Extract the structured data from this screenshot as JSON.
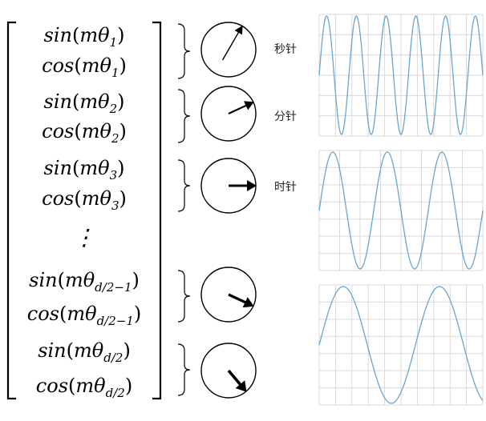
{
  "vector": {
    "entries": [
      {
        "fn": "sin",
        "sub": "1"
      },
      {
        "fn": "cos",
        "sub": "1"
      },
      {
        "fn": "sin",
        "sub": "2"
      },
      {
        "fn": "cos",
        "sub": "2"
      },
      {
        "fn": "sin",
        "sub": "3"
      },
      {
        "fn": "cos",
        "sub": "3"
      },
      {
        "fn": "sin",
        "sub": "d/2−1"
      },
      {
        "fn": "cos",
        "sub": "d/2−1"
      },
      {
        "fn": "sin",
        "sub": "d/2"
      },
      {
        "fn": "cos",
        "sub": "d/2"
      }
    ],
    "ellipsis": "⋮"
  },
  "clocks": [
    {
      "name": "clock-1",
      "angle_deg": 60,
      "label": "秒针"
    },
    {
      "name": "clock-2",
      "angle_deg": 25,
      "label": "分针"
    },
    {
      "name": "clock-3",
      "angle_deg": 0,
      "label": "时针"
    },
    {
      "name": "clock-4",
      "angle_deg": -25,
      "label": ""
    },
    {
      "name": "clock-5",
      "angle_deg": -50,
      "label": ""
    }
  ],
  "colors": {
    "wave": "#6aa6cc",
    "grid": "#d9d9d9",
    "ink": "#000000"
  },
  "chart_data": [
    {
      "type": "line",
      "name": "fast-wave",
      "cycles": 5.5,
      "phase_start": "mid-rising"
    },
    {
      "type": "line",
      "name": "medium-wave",
      "cycles": 3.0,
      "phase_start": "mid-rising"
    },
    {
      "type": "line",
      "name": "slow-wave",
      "cycles": 1.7,
      "phase_start": "mid-rising"
    }
  ]
}
